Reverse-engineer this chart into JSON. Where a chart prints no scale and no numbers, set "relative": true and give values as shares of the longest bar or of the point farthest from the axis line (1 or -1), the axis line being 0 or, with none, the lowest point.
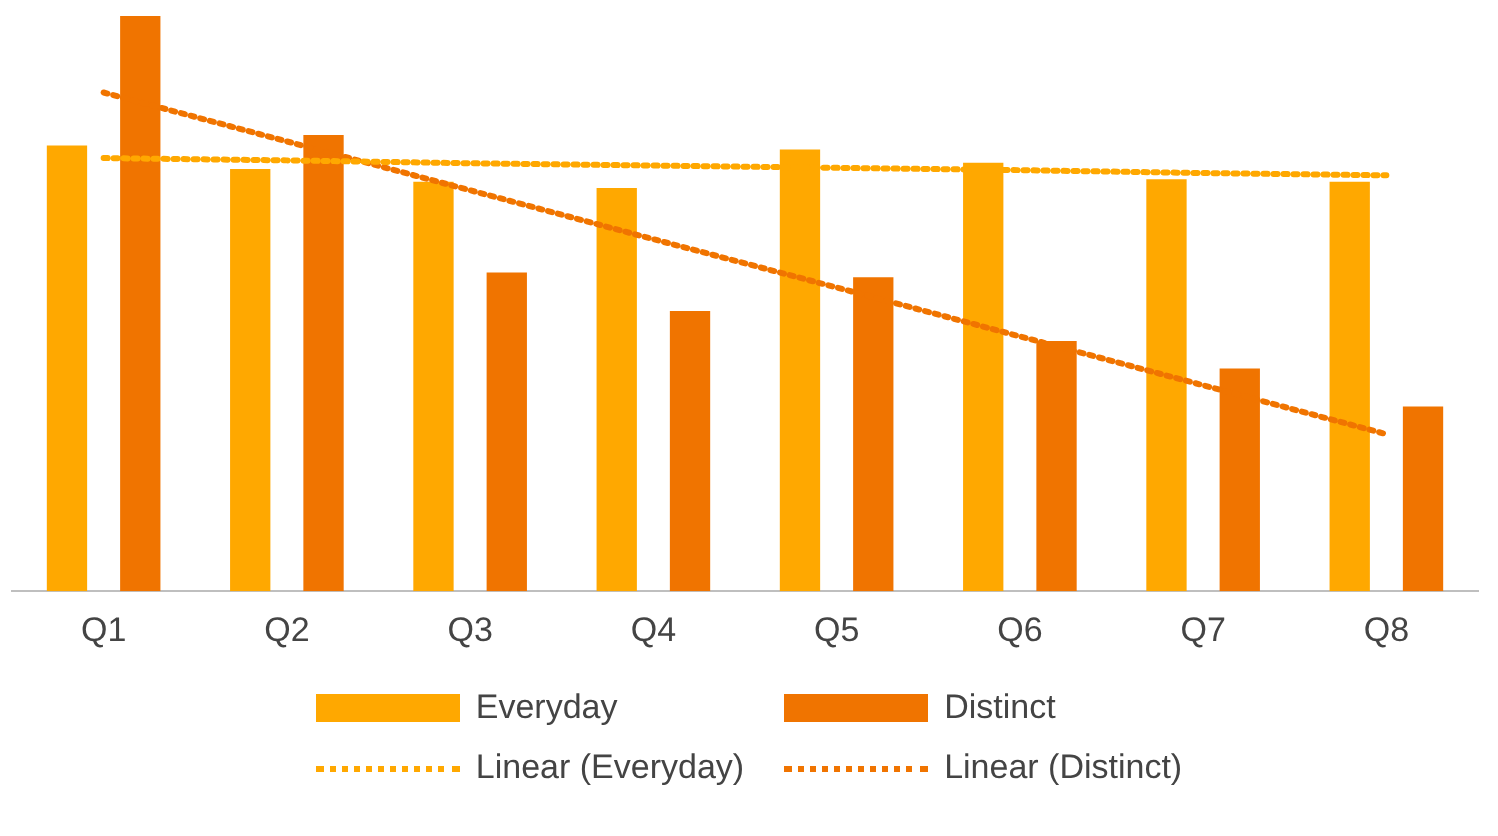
{
  "chart_data": {
    "type": "bar",
    "relative": true,
    "categories": [
      "Q1",
      "Q2",
      "Q3",
      "Q4",
      "Q5",
      "Q6",
      "Q7",
      "Q8"
    ],
    "series": [
      {
        "name": "Everyday",
        "type": "bar",
        "color": "#ffa800",
        "values": [
          0.775,
          0.734,
          0.712,
          0.701,
          0.768,
          0.745,
          0.716,
          0.712
        ]
      },
      {
        "name": "Distinct",
        "type": "bar",
        "color": "#f07400",
        "values": [
          1,
          0.793,
          0.554,
          0.487,
          0.546,
          0.435,
          0.387,
          0.321
        ]
      },
      {
        "name": "Linear (Everyday)",
        "type": "line",
        "color": "#ffa800",
        "line_style": "dotted",
        "marker": "none",
        "values": [
          0.753,
          0.749,
          0.744,
          0.74,
          0.736,
          0.732,
          0.727,
          0.723
        ]
      },
      {
        "name": "Linear (Distinct)",
        "type": "line",
        "color": "#f07400",
        "line_style": "dotted",
        "marker": "none",
        "values": [
          0.867,
          0.782,
          0.697,
          0.612,
          0.528,
          0.443,
          0.358,
          0.273
        ]
      }
    ],
    "grid": false,
    "legend": "bottom"
  }
}
